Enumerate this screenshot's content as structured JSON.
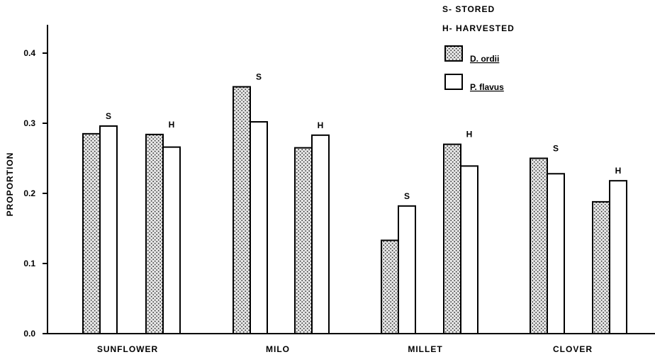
{
  "chart_data": {
    "type": "bar",
    "title": "",
    "xlabel": "",
    "ylabel": "PROPORTION",
    "ylim": [
      0,
      0.45
    ],
    "yticks": [
      "0.0",
      "0.1",
      "0.2",
      "0.3",
      "0.4"
    ],
    "yticks_values": [
      0,
      0.1,
      0.2,
      0.3,
      0.4
    ],
    "categories": [
      "SUNFLOWER",
      "MILO",
      "MILLET",
      "CLOVER"
    ],
    "groups": [
      "S",
      "H"
    ],
    "series": [
      {
        "name": "D. ordii",
        "pattern": "stippled",
        "values": [
          [
            0.285,
            0.284
          ],
          [
            0.352,
            0.265
          ],
          [
            0.133,
            0.27
          ],
          [
            0.25,
            0.188
          ]
        ]
      },
      {
        "name": "P. flavus",
        "pattern": "open",
        "values": [
          [
            0.296,
            0.266
          ],
          [
            0.302,
            0.283
          ],
          [
            0.182,
            0.239
          ],
          [
            0.228,
            0.218
          ]
        ]
      }
    ],
    "legend": {
      "placement": "top-right",
      "codes": [
        "S- STORED",
        "H- HARVESTED"
      ],
      "species": [
        "D. ordii",
        "P. flavus"
      ]
    },
    "grid": false,
    "colors": {
      "ink": "#000000",
      "fill_open": "#ffffff",
      "stipple_bg": "#e6e6e6",
      "stipple_dot": "#333333"
    }
  }
}
